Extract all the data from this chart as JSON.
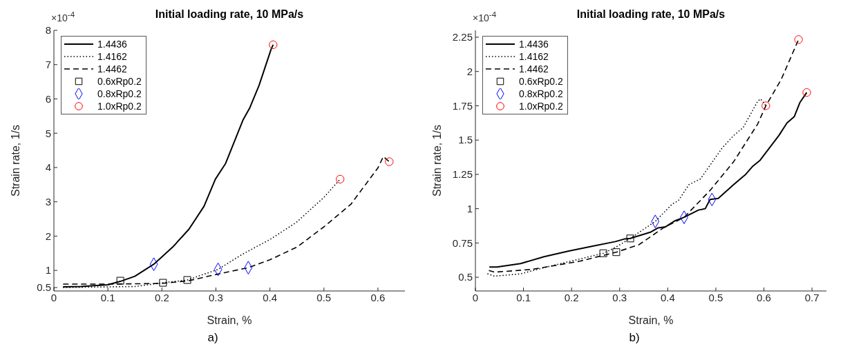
{
  "chart_data": [
    {
      "type": "line",
      "title": "Initial loading rate, 10 MPa/s",
      "xlabel": "Strain, %",
      "ylabel": "Strain rate, 1/s",
      "annotations": [
        "×10$^{-4}$",
        "a)"
      ],
      "xlim": [
        0,
        0.65
      ],
      "xticks": [
        0,
        0.1,
        0.2,
        0.3,
        0.4,
        0.5,
        0.6
      ],
      "ylim": [
        0.4,
        8
      ],
      "yticks": [
        0.5,
        1,
        2,
        3,
        4,
        5,
        6,
        7,
        8
      ],
      "grid": false,
      "legend": "top left",
      "series": [
        {
          "name": "1.4436",
          "color": "#000000",
          "line_style": "solid",
          "marker": "none",
          "x": [
            0.017,
            0.05,
            0.1,
            0.123,
            0.15,
            0.185,
            0.22,
            0.25,
            0.278,
            0.299,
            0.318,
            0.35,
            0.363,
            0.38,
            0.402,
            0.406
          ],
          "values": [
            0.52,
            0.53,
            0.58,
            0.68,
            0.83,
            1.18,
            1.68,
            2.2,
            2.87,
            3.66,
            4.12,
            5.38,
            5.75,
            6.4,
            7.44,
            7.58
          ]
        },
        {
          "name": "1.4162",
          "color": "#000000",
          "line_style": "dotted",
          "marker": "none",
          "x": [
            0.017,
            0.1,
            0.15,
            0.202,
            0.247,
            0.304,
            0.35,
            0.4,
            0.449,
            0.5,
            0.53
          ],
          "values": [
            0.5,
            0.52,
            0.53,
            0.64,
            0.72,
            1.03,
            1.48,
            1.9,
            2.4,
            3.13,
            3.66
          ]
        },
        {
          "name": "1.4462",
          "color": "#000000",
          "line_style": "dashed",
          "marker": "none",
          "x": [
            0.017,
            0.1,
            0.2,
            0.25,
            0.3,
            0.36,
            0.4,
            0.45,
            0.5,
            0.55,
            0.6,
            0.61,
            0.621
          ],
          "values": [
            0.6,
            0.6,
            0.62,
            0.7,
            0.88,
            1.08,
            1.31,
            1.68,
            2.27,
            2.93,
            3.99,
            4.32,
            4.17
          ]
        },
        {
          "type": "scatter",
          "name": "0.6xRp0.2",
          "color": "#000000",
          "marker": "square",
          "x": [
            0.123,
            0.202,
            0.247
          ],
          "values": [
            0.7,
            0.64,
            0.72
          ]
        },
        {
          "type": "scatter",
          "name": "0.8xRp0.2",
          "color": "#0000ff",
          "marker": "diamond",
          "x": [
            0.185,
            0.304,
            0.36
          ],
          "values": [
            1.18,
            1.03,
            1.08
          ]
        },
        {
          "type": "scatter",
          "name": "1.0xRp0.2",
          "color": "#ff0000",
          "marker": "circle",
          "x": [
            0.406,
            0.53,
            0.621
          ],
          "values": [
            7.58,
            3.66,
            4.17
          ]
        }
      ]
    },
    {
      "type": "line",
      "title": "Initial loading rate, 10 MPa/s",
      "xlabel": "Strain, %",
      "ylabel": "Strain rate, 1/s",
      "annotations": [
        "×10$^{-4}$",
        "b)"
      ],
      "xlim": [
        0,
        0.73
      ],
      "xticks": [
        0,
        0.1,
        0.2,
        0.3,
        0.4,
        0.5,
        0.6,
        0.7
      ],
      "ylim": [
        0.4,
        2.3
      ],
      "yticks": [
        0.5,
        0.75,
        1,
        1.25,
        1.5,
        1.75,
        2,
        2.25
      ],
      "grid": false,
      "legend": "top left",
      "series": [
        {
          "name": "1.4436",
          "color": "#000000",
          "line_style": "solid",
          "marker": "none",
          "x": [
            0.029,
            0.045,
            0.094,
            0.143,
            0.193,
            0.242,
            0.291,
            0.311,
            0.322,
            0.365,
            0.38,
            0.395,
            0.414,
            0.434,
            0.464,
            0.478,
            0.488,
            0.505,
            0.537,
            0.562,
            0.577,
            0.592,
            0.631,
            0.648,
            0.663,
            0.675,
            0.689
          ],
          "values": [
            0.575,
            0.575,
            0.6,
            0.65,
            0.69,
            0.725,
            0.76,
            0.78,
            0.783,
            0.83,
            0.86,
            0.867,
            0.91,
            0.937,
            0.99,
            1.0,
            1.067,
            1.075,
            1.175,
            1.25,
            1.31,
            1.353,
            1.533,
            1.625,
            1.67,
            1.775,
            1.847
          ]
        },
        {
          "name": "1.4162",
          "color": "#000000",
          "line_style": "dotted",
          "marker": "none",
          "x": [
            0.025,
            0.04,
            0.094,
            0.143,
            0.266,
            0.291,
            0.322,
            0.35,
            0.374,
            0.409,
            0.422,
            0.444,
            0.468,
            0.513,
            0.537,
            0.557,
            0.587,
            0.593,
            0.599,
            0.604
          ],
          "values": [
            0.525,
            0.508,
            0.525,
            0.57,
            0.675,
            0.717,
            0.783,
            0.85,
            0.907,
            1.033,
            1.058,
            1.175,
            1.217,
            1.442,
            1.533,
            1.592,
            1.783,
            1.8,
            1.775,
            1.75
          ]
        },
        {
          "name": "1.4462",
          "color": "#000000",
          "line_style": "dashed",
          "marker": "none",
          "x": [
            0.028,
            0.04,
            0.119,
            0.217,
            0.293,
            0.34,
            0.39,
            0.434,
            0.488,
            0.537,
            0.587,
            0.604,
            0.636,
            0.672
          ],
          "values": [
            0.55,
            0.537,
            0.558,
            0.617,
            0.683,
            0.737,
            0.858,
            0.937,
            1.133,
            1.342,
            1.617,
            1.75,
            1.942,
            2.233
          ]
        },
        {
          "type": "scatter",
          "name": "0.6xRp0.2",
          "color": "#000000",
          "marker": "square",
          "x": [
            0.266,
            0.293,
            0.322
          ],
          "values": [
            0.675,
            0.683,
            0.783
          ]
        },
        {
          "type": "scatter",
          "name": "0.8xRp0.2",
          "color": "#0000ff",
          "marker": "diamond",
          "x": [
            0.374,
            0.434,
            0.492
          ],
          "values": [
            0.907,
            0.937,
            1.067
          ]
        },
        {
          "type": "scatter",
          "name": "1.0xRp0.2",
          "color": "#ff0000",
          "marker": "circle",
          "x": [
            0.604,
            0.689,
            0.672
          ],
          "values": [
            1.75,
            1.847,
            2.233
          ]
        }
      ]
    }
  ]
}
